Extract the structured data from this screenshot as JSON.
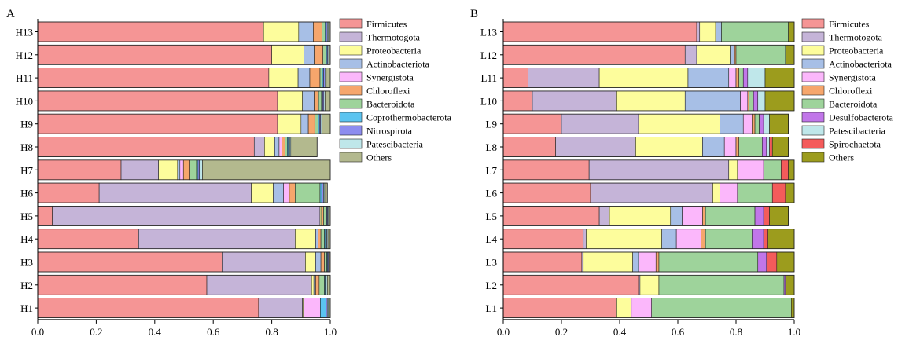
{
  "chart_data": [
    {
      "panel": "A",
      "type": "bar",
      "orientation": "horizontal",
      "stacked": true,
      "xlim": [
        0,
        1.0
      ],
      "x_ticks": [
        "0.0",
        "0.2",
        "0.4",
        "0.6",
        "0.8",
        "1.0"
      ],
      "categories": [
        "H13",
        "H12",
        "H11",
        "H10",
        "H9",
        "H8",
        "H7",
        "H6",
        "H5",
        "H4",
        "H3",
        "H2",
        "H1"
      ],
      "series": [
        {
          "name": "Firmicutes",
          "color": "#f59595",
          "values": [
            0.772,
            0.8,
            0.79,
            0.82,
            0.82,
            0.74,
            0.285,
            0.21,
            0.05,
            0.345,
            0.63,
            0.578,
            0.755
          ]
        },
        {
          "name": "Thermotogota",
          "color": "#c5b4d8",
          "values": [
            0.0,
            0.0,
            0.0,
            0.0,
            0.0,
            0.035,
            0.128,
            0.52,
            0.915,
            0.535,
            0.285,
            0.358,
            0.15
          ]
        },
        {
          "name": "Proteobacteria",
          "color": "#fdfd9c",
          "values": [
            0.12,
            0.11,
            0.1,
            0.085,
            0.08,
            0.035,
            0.065,
            0.075,
            0.005,
            0.07,
            0.035,
            0.008,
            0.003
          ]
        },
        {
          "name": "Actinobacteriota",
          "color": "#a7bfe6",
          "values": [
            0.05,
            0.035,
            0.04,
            0.04,
            0.025,
            0.015,
            0.008,
            0.035,
            0.0,
            0.008,
            0.018,
            0.006,
            0.0
          ]
        },
        {
          "name": "Synergistota",
          "color": "#fbb7fb",
          "values": [
            0.0,
            0.0,
            0.0,
            0.0,
            0.0,
            0.01,
            0.012,
            0.02,
            0.0,
            0.0,
            0.0,
            0.0,
            0.058
          ]
        },
        {
          "name": "Chloroflexi",
          "color": "#f6a66c",
          "values": [
            0.03,
            0.03,
            0.035,
            0.015,
            0.022,
            0.01,
            0.02,
            0.02,
            0.007,
            0.01,
            0.012,
            0.012,
            0.0
          ]
        },
        {
          "name": "Bacteroidota",
          "color": "#9ed39b",
          "values": [
            0.01,
            0.01,
            0.008,
            0.01,
            0.012,
            0.008,
            0.025,
            0.085,
            0.008,
            0.012,
            0.008,
            0.018,
            0.0
          ]
        },
        {
          "name": "Coprothermobacterota",
          "color": "#5bc4f0",
          "values": [
            0.004,
            0.004,
            0.004,
            0.004,
            0.004,
            0.004,
            0.005,
            0.006,
            0.003,
            0.004,
            0.003,
            0.003,
            0.02
          ]
        },
        {
          "name": "Nitrospirota",
          "color": "#8d8cef",
          "values": [
            0.004,
            0.003,
            0.005,
            0.004,
            0.004,
            0.004,
            0.005,
            0.006,
            0.003,
            0.004,
            0.003,
            0.003,
            0.004
          ]
        },
        {
          "name": "Patescibacteria",
          "color": "#bfe7ea",
          "values": [
            0.004,
            0.004,
            0.004,
            0.004,
            0.004,
            0.004,
            0.01,
            0.004,
            0.003,
            0.004,
            0.003,
            0.004,
            0.004
          ]
        },
        {
          "name": "Others",
          "color": "#b3b98e",
          "values": [
            0.006,
            0.004,
            0.014,
            0.018,
            0.029,
            0.09,
            0.445,
            0.009,
            0.006,
            0.008,
            0.003,
            0.01,
            0.006
          ]
        }
      ]
    },
    {
      "panel": "B",
      "type": "bar",
      "orientation": "horizontal",
      "stacked": true,
      "xlim": [
        0,
        1.0
      ],
      "x_ticks": [
        "0.0",
        "0.2",
        "0.4",
        "0.6",
        "0.8",
        "1.0"
      ],
      "categories": [
        "L13",
        "L12",
        "L11",
        "L10",
        "L9",
        "L8",
        "L7",
        "L6",
        "L5",
        "L4",
        "L3",
        "L2",
        "L1"
      ],
      "series": [
        {
          "name": "Firmicutes",
          "color": "#f59595",
          "values": [
            0.665,
            0.625,
            0.085,
            0.1,
            0.2,
            0.18,
            0.295,
            0.3,
            0.33,
            0.275,
            0.27,
            0.465,
            0.39
          ]
        },
        {
          "name": "Thermotogota",
          "color": "#c5b4d8",
          "values": [
            0.01,
            0.04,
            0.245,
            0.29,
            0.265,
            0.275,
            0.48,
            0.42,
            0.035,
            0.01,
            0.005,
            0.005,
            0.0
          ]
        },
        {
          "name": "Proteobacteria",
          "color": "#fdfd9c",
          "values": [
            0.055,
            0.115,
            0.305,
            0.235,
            0.28,
            0.23,
            0.03,
            0.025,
            0.21,
            0.26,
            0.17,
            0.065,
            0.05
          ]
        },
        {
          "name": "Actinobacteriota",
          "color": "#a7bfe6",
          "values": [
            0.02,
            0.015,
            0.14,
            0.19,
            0.08,
            0.075,
            0.0,
            0.0,
            0.04,
            0.05,
            0.02,
            0.0,
            0.0
          ]
        },
        {
          "name": "Synergistota",
          "color": "#fbb7fb",
          "values": [
            0.0,
            0.0,
            0.025,
            0.025,
            0.03,
            0.04,
            0.09,
            0.06,
            0.07,
            0.085,
            0.06,
            0.0,
            0.07
          ]
        },
        {
          "name": "Chloroflexi",
          "color": "#f6a66c",
          "values": [
            0.0,
            0.005,
            0.01,
            0.005,
            0.01,
            0.01,
            0.0,
            0.0,
            0.01,
            0.015,
            0.01,
            0.0,
            0.0
          ]
        },
        {
          "name": "Bacteroidota",
          "color": "#9ed39b",
          "values": [
            0.23,
            0.17,
            0.015,
            0.015,
            0.015,
            0.08,
            0.06,
            0.12,
            0.17,
            0.16,
            0.34,
            0.43,
            0.48
          ]
        },
        {
          "name": "Desulfobacterota",
          "color": "#c176e9",
          "values": [
            0.0,
            0.0,
            0.015,
            0.015,
            0.015,
            0.015,
            0.0,
            0.0,
            0.03,
            0.04,
            0.03,
            0.005,
            0.0
          ]
        },
        {
          "name": "Patescibacteria",
          "color": "#bfe7ea",
          "values": [
            0.0,
            0.0,
            0.06,
            0.025,
            0.02,
            0.01,
            0.0,
            0.0,
            0.0,
            0.0,
            0.0,
            0.0,
            0.0
          ]
        },
        {
          "name": "Spirochaetota",
          "color": "#f45b5b",
          "values": [
            0.0,
            0.0,
            0.0,
            0.0,
            0.0,
            0.01,
            0.025,
            0.045,
            0.02,
            0.015,
            0.035,
            0.0,
            0.0
          ]
        },
        {
          "name": "Others",
          "color": "#9c9c1d",
          "values": [
            0.02,
            0.03,
            0.1,
            0.1,
            0.065,
            0.055,
            0.02,
            0.03,
            0.065,
            0.09,
            0.06,
            0.03,
            0.01
          ]
        }
      ]
    }
  ],
  "figure": {
    "frame_color": "#000000"
  }
}
